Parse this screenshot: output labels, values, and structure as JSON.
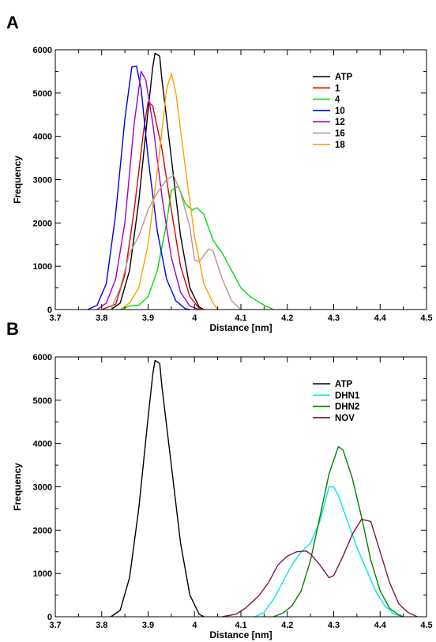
{
  "chart_data": [
    {
      "panel": "A",
      "type": "line",
      "xlabel": "Distance [nm]",
      "ylabel": "Frequency",
      "xlim": [
        3.7,
        4.5
      ],
      "ylim": [
        0,
        6000
      ],
      "xticks": [
        "3.7",
        "3.8",
        "3.9",
        "4",
        "4.1",
        "4.2",
        "4.3",
        "4.4",
        "4.5"
      ],
      "yticks": [
        "0",
        "1000",
        "2000",
        "3000",
        "4000",
        "5000",
        "6000"
      ],
      "legend_position": "top-right",
      "grid": false,
      "series": [
        {
          "name": "ATP",
          "color": "#000000",
          "points": [
            [
              3.82,
              0
            ],
            [
              3.84,
              150
            ],
            [
              3.86,
              900
            ],
            [
              3.88,
              2500
            ],
            [
              3.9,
              4600
            ],
            [
              3.91,
              5600
            ],
            [
              3.915,
              5920
            ],
            [
              3.925,
              5850
            ],
            [
              3.93,
              5300
            ],
            [
              3.95,
              3500
            ],
            [
              3.97,
              1700
            ],
            [
              3.99,
              500
            ],
            [
              4.01,
              60
            ],
            [
              4.02,
              0
            ]
          ]
        },
        {
          "name": "1",
          "color": "#e00000",
          "points": [
            [
              3.8,
              0
            ],
            [
              3.83,
              120
            ],
            [
              3.85,
              800
            ],
            [
              3.87,
              2300
            ],
            [
              3.89,
              4100
            ],
            [
              3.9,
              4800
            ],
            [
              3.91,
              4700
            ],
            [
              3.93,
              3700
            ],
            [
              3.95,
              2300
            ],
            [
              3.97,
              1000
            ],
            [
              3.99,
              300
            ],
            [
              4.01,
              30
            ],
            [
              4.02,
              0
            ]
          ]
        },
        {
          "name": "4",
          "color": "#00dd00",
          "points": [
            [
              3.84,
              0
            ],
            [
              3.86,
              80
            ],
            [
              3.88,
              100
            ],
            [
              3.9,
              300
            ],
            [
              3.92,
              900
            ],
            [
              3.94,
              2000
            ],
            [
              3.95,
              2750
            ],
            [
              3.965,
              2850
            ],
            [
              3.98,
              2450
            ],
            [
              3.995,
              2300
            ],
            [
              4.005,
              2350
            ],
            [
              4.02,
              2200
            ],
            [
              4.04,
              1600
            ],
            [
              4.06,
              1300
            ],
            [
              4.08,
              900
            ],
            [
              4.1,
              500
            ],
            [
              4.12,
              300
            ],
            [
              4.15,
              100
            ],
            [
              4.17,
              0
            ]
          ]
        },
        {
          "name": "10",
          "color": "#0000ee",
          "points": [
            [
              3.77,
              0
            ],
            [
              3.79,
              100
            ],
            [
              3.81,
              600
            ],
            [
              3.83,
              2200
            ],
            [
              3.85,
              4400
            ],
            [
              3.865,
              5600
            ],
            [
              3.875,
              5620
            ],
            [
              3.885,
              5100
            ],
            [
              3.9,
              3500
            ],
            [
              3.92,
              1800
            ],
            [
              3.94,
              700
            ],
            [
              3.96,
              200
            ],
            [
              3.98,
              20
            ],
            [
              3.99,
              0
            ]
          ]
        },
        {
          "name": "12",
          "color": "#a000c8",
          "points": [
            [
              3.79,
              0
            ],
            [
              3.81,
              150
            ],
            [
              3.83,
              700
            ],
            [
              3.85,
              2000
            ],
            [
              3.87,
              4300
            ],
            [
              3.885,
              5500
            ],
            [
              3.895,
              5300
            ],
            [
              3.91,
              4300
            ],
            [
              3.93,
              2600
            ],
            [
              3.95,
              1200
            ],
            [
              3.97,
              400
            ],
            [
              3.99,
              80
            ],
            [
              4.01,
              0
            ]
          ]
        },
        {
          "name": "16",
          "color": "#c09090",
          "points": [
            [
              3.82,
              0
            ],
            [
              3.84,
              500
            ],
            [
              3.86,
              1300
            ],
            [
              3.88,
              1700
            ],
            [
              3.9,
              2300
            ],
            [
              3.92,
              2700
            ],
            [
              3.94,
              3000
            ],
            [
              3.955,
              3100
            ],
            [
              3.97,
              2700
            ],
            [
              3.99,
              1900
            ],
            [
              4.0,
              1150
            ],
            [
              4.01,
              1100
            ],
            [
              4.03,
              1400
            ],
            [
              4.04,
              1350
            ],
            [
              4.06,
              700
            ],
            [
              4.08,
              200
            ],
            [
              4.1,
              0
            ]
          ]
        },
        {
          "name": "18",
          "color": "#ffa000",
          "points": [
            [
              3.84,
              0
            ],
            [
              3.86,
              150
            ],
            [
              3.88,
              500
            ],
            [
              3.9,
              1500
            ],
            [
              3.92,
              3200
            ],
            [
              3.94,
              5100
            ],
            [
              3.95,
              5450
            ],
            [
              3.96,
              5000
            ],
            [
              3.98,
              3300
            ],
            [
              4.0,
              1700
            ],
            [
              4.02,
              600
            ],
            [
              4.04,
              150
            ],
            [
              4.05,
              0
            ]
          ]
        }
      ]
    },
    {
      "panel": "B",
      "type": "line",
      "xlabel": "Distance [nm]",
      "ylabel": "Frequency",
      "xlim": [
        3.7,
        4.5
      ],
      "ylim": [
        0,
        6000
      ],
      "xticks": [
        "3.7",
        "3.8",
        "3.9",
        "4",
        "4.1",
        "4.2",
        "4.3",
        "4.4",
        "4.5"
      ],
      "yticks": [
        "0",
        "1000",
        "2000",
        "3000",
        "4000",
        "5000",
        "6000"
      ],
      "legend_position": "top-right",
      "grid": false,
      "series": [
        {
          "name": "ATP",
          "color": "#000000",
          "points": [
            [
              3.82,
              0
            ],
            [
              3.84,
              150
            ],
            [
              3.86,
              900
            ],
            [
              3.88,
              2500
            ],
            [
              3.9,
              4600
            ],
            [
              3.91,
              5600
            ],
            [
              3.915,
              5920
            ],
            [
              3.925,
              5850
            ],
            [
              3.93,
              5300
            ],
            [
              3.95,
              3500
            ],
            [
              3.97,
              1700
            ],
            [
              3.99,
              500
            ],
            [
              4.01,
              60
            ],
            [
              4.02,
              0
            ]
          ]
        },
        {
          "name": "DHN1",
          "color": "#00e8e8",
          "points": [
            [
              4.13,
              0
            ],
            [
              4.15,
              100
            ],
            [
              4.17,
              400
            ],
            [
              4.19,
              800
            ],
            [
              4.21,
              1200
            ],
            [
              4.23,
              1500
            ],
            [
              4.25,
              1700
            ],
            [
              4.27,
              2200
            ],
            [
              4.29,
              3000
            ],
            [
              4.3,
              3000
            ],
            [
              4.31,
              2800
            ],
            [
              4.33,
              2200
            ],
            [
              4.35,
              1600
            ],
            [
              4.37,
              1100
            ],
            [
              4.39,
              600
            ],
            [
              4.41,
              250
            ],
            [
              4.43,
              60
            ],
            [
              4.45,
              0
            ]
          ]
        },
        {
          "name": "DHN2",
          "color": "#008000",
          "points": [
            [
              4.17,
              0
            ],
            [
              4.19,
              80
            ],
            [
              4.21,
              250
            ],
            [
              4.23,
              600
            ],
            [
              4.25,
              1300
            ],
            [
              4.27,
              2300
            ],
            [
              4.29,
              3300
            ],
            [
              4.31,
              3930
            ],
            [
              4.32,
              3850
            ],
            [
              4.34,
              3200
            ],
            [
              4.36,
              2300
            ],
            [
              4.38,
              1300
            ],
            [
              4.4,
              600
            ],
            [
              4.42,
              200
            ],
            [
              4.44,
              40
            ],
            [
              4.45,
              0
            ]
          ]
        },
        {
          "name": "NOV",
          "color": "#7a1550",
          "points": [
            [
              4.06,
              0
            ],
            [
              4.09,
              60
            ],
            [
              4.11,
              200
            ],
            [
              4.14,
              500
            ],
            [
              4.16,
              800
            ],
            [
              4.18,
              1200
            ],
            [
              4.2,
              1400
            ],
            [
              4.22,
              1500
            ],
            [
              4.24,
              1520
            ],
            [
              4.25,
              1450
            ],
            [
              4.27,
              1200
            ],
            [
              4.29,
              900
            ],
            [
              4.3,
              950
            ],
            [
              4.32,
              1400
            ],
            [
              4.34,
              1900
            ],
            [
              4.36,
              2250
            ],
            [
              4.38,
              2200
            ],
            [
              4.4,
              1500
            ],
            [
              4.42,
              800
            ],
            [
              4.44,
              300
            ],
            [
              4.46,
              100
            ],
            [
              4.48,
              0
            ]
          ]
        }
      ]
    }
  ]
}
